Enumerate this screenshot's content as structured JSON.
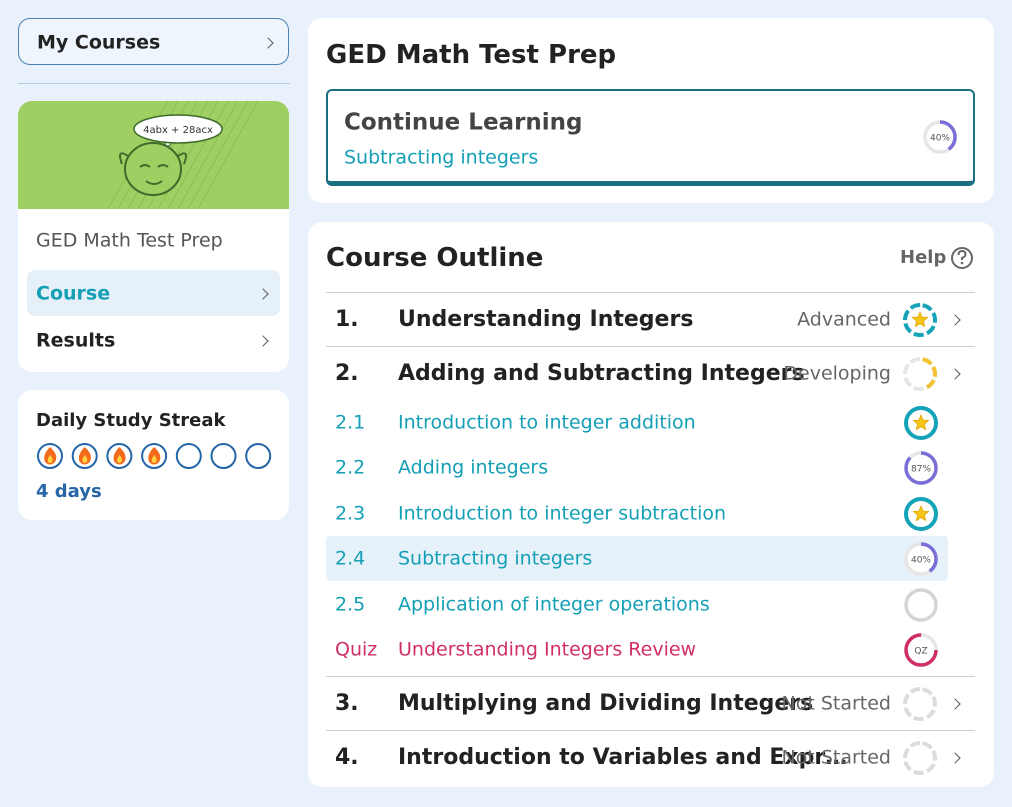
{
  "sidebar": {
    "my_courses": "My Courses",
    "course_card": {
      "illustration_text": "4abx + 28acx",
      "title": "GED Math Test Prep",
      "nav": [
        "Course",
        "Results"
      ],
      "active": 0
    },
    "streak": {
      "title": "Daily Study Streak",
      "days_label": "4 days",
      "flames": [
        true,
        true,
        true,
        true,
        false,
        false,
        false
      ]
    }
  },
  "header": {
    "title": "GED Math Test Prep",
    "continue": {
      "title": "Continue Learning",
      "lesson": "Subtracting integers",
      "progress": {
        "value": 40,
        "label": "40%"
      }
    }
  },
  "outline": {
    "title": "Course Outline",
    "help": "Help",
    "units": [
      {
        "number": "1.",
        "title": "Understanding Integers",
        "status": "Advanced",
        "icon": "advanced"
      },
      {
        "number": "2.",
        "title": "Adding and Subtracting Integers",
        "status": "Developing",
        "icon": "developing",
        "lessons": [
          {
            "number": "2.1",
            "title": "Introduction to integer addition",
            "icon": "mastered"
          },
          {
            "number": "2.2",
            "title": "Adding integers",
            "icon": "progress",
            "progress": {
              "value": 87,
              "label": "87%"
            }
          },
          {
            "number": "2.3",
            "title": "Introduction to integer subtraction",
            "icon": "mastered"
          },
          {
            "number": "2.4",
            "title": "Subtracting integers",
            "icon": "progress",
            "progress": {
              "value": 40,
              "label": "40%"
            },
            "current": true
          },
          {
            "number": "2.5",
            "title": "Application of integer operations",
            "icon": "empty"
          },
          {
            "number": "Quiz",
            "title": "Understanding Integers Review",
            "icon": "quiz",
            "icon_label": "QZ"
          }
        ]
      },
      {
        "number": "3.",
        "title": "Multiplying and Dividing Integers",
        "status": "Not Started",
        "icon": "not-started"
      },
      {
        "number": "4.",
        "title": "Introduction to Variables and Expr…",
        "status": "Not Started",
        "icon": "not-started"
      }
    ]
  }
}
